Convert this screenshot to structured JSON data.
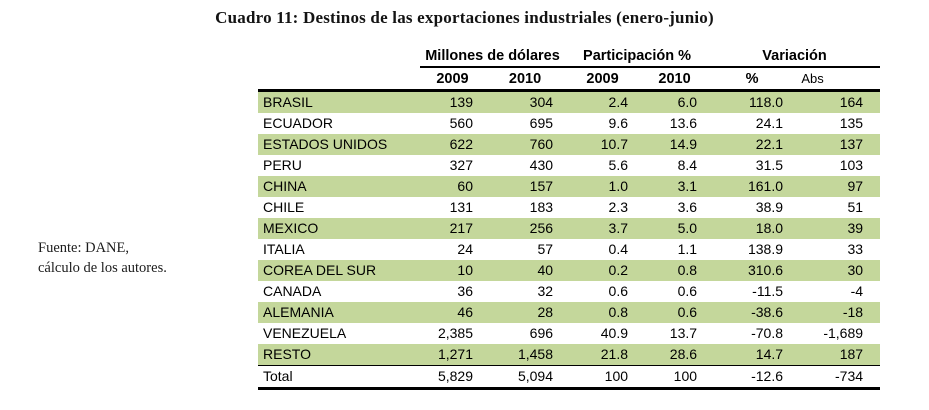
{
  "title": "Cuadro 11: Destinos de las exportaciones industriales (enero-junio)",
  "source_note": {
    "line1": "Fuente: DANE,",
    "line2": "cálculo de los autores."
  },
  "table": {
    "highlight_color": "#c4d79b",
    "group_headers": [
      {
        "label": "Millones de dólares"
      },
      {
        "label": "Participación %"
      },
      {
        "label": "Variación"
      }
    ],
    "column_headers": [
      "2009",
      "2010",
      "2009",
      "2010",
      "%",
      "Abs"
    ],
    "rows": [
      {
        "label": "BRASIL",
        "values": [
          "139",
          "304",
          "2.4",
          "6.0",
          "118.0",
          "164"
        ],
        "highlight": true,
        "is_total": false
      },
      {
        "label": "ECUADOR",
        "values": [
          "560",
          "695",
          "9.6",
          "13.6",
          "24.1",
          "135"
        ],
        "highlight": false,
        "is_total": false
      },
      {
        "label": "ESTADOS UNIDOS",
        "values": [
          "622",
          "760",
          "10.7",
          "14.9",
          "22.1",
          "137"
        ],
        "highlight": true,
        "is_total": false
      },
      {
        "label": "PERU",
        "values": [
          "327",
          "430",
          "5.6",
          "8.4",
          "31.5",
          "103"
        ],
        "highlight": false,
        "is_total": false
      },
      {
        "label": "CHINA",
        "values": [
          "60",
          "157",
          "1.0",
          "3.1",
          "161.0",
          "97"
        ],
        "highlight": true,
        "is_total": false
      },
      {
        "label": "CHILE",
        "values": [
          "131",
          "183",
          "2.3",
          "3.6",
          "38.9",
          "51"
        ],
        "highlight": false,
        "is_total": false
      },
      {
        "label": "MEXICO",
        "values": [
          "217",
          "256",
          "3.7",
          "5.0",
          "18.0",
          "39"
        ],
        "highlight": true,
        "is_total": false
      },
      {
        "label": "ITALIA",
        "values": [
          "24",
          "57",
          "0.4",
          "1.1",
          "138.9",
          "33"
        ],
        "highlight": false,
        "is_total": false
      },
      {
        "label": "COREA DEL SUR",
        "values": [
          "10",
          "40",
          "0.2",
          "0.8",
          "310.6",
          "30"
        ],
        "highlight": true,
        "is_total": false
      },
      {
        "label": "CANADA",
        "values": [
          "36",
          "32",
          "0.6",
          "0.6",
          "-11.5",
          "-4"
        ],
        "highlight": false,
        "is_total": false
      },
      {
        "label": "ALEMANIA",
        "values": [
          "46",
          "28",
          "0.8",
          "0.6",
          "-38.6",
          "-18"
        ],
        "highlight": true,
        "is_total": false
      },
      {
        "label": "VENEZUELA",
        "values": [
          "2,385",
          "696",
          "40.9",
          "13.7",
          "-70.8",
          "-1,689"
        ],
        "highlight": false,
        "is_total": false
      },
      {
        "label": "RESTO",
        "values": [
          "1,271",
          "1,458",
          "21.8",
          "28.6",
          "14.7",
          "187"
        ],
        "highlight": true,
        "is_total": false
      },
      {
        "label": "Total",
        "values": [
          "5,829",
          "5,094",
          "100",
          "100",
          "-12.6",
          "-734"
        ],
        "highlight": false,
        "is_total": true
      }
    ]
  }
}
